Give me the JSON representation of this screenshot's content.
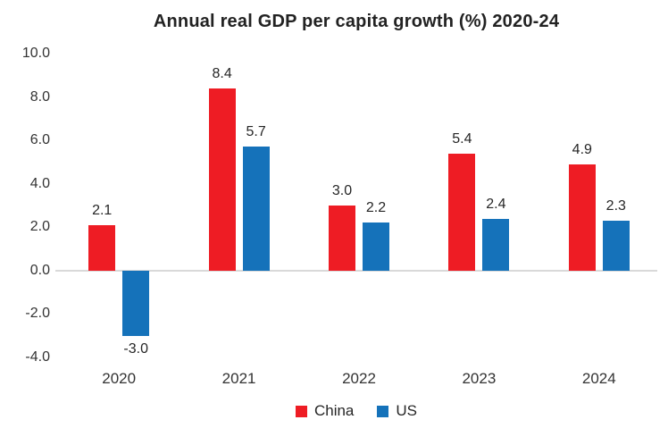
{
  "title": "Annual real GDP per capita growth (%) 2020-24",
  "chart_data": {
    "type": "bar",
    "categories": [
      "2020",
      "2021",
      "2022",
      "2023",
      "2024"
    ],
    "series": [
      {
        "name": "China",
        "color": "#EE1C24",
        "values": [
          2.1,
          8.4,
          3.0,
          5.4,
          4.9
        ]
      },
      {
        "name": "US",
        "color": "#1572BA",
        "values": [
          -3.0,
          5.7,
          2.2,
          2.4,
          2.3
        ]
      }
    ],
    "title": "Annual real GDP per capita growth (%) 2020-24",
    "xlabel": "",
    "ylabel": "",
    "ylim": [
      -4.0,
      10.0
    ],
    "yticks": [
      10.0,
      8.0,
      6.0,
      4.0,
      2.0,
      0.0,
      -2.0,
      -4.0
    ],
    "ytick_labels": [
      "10.0",
      "8.0",
      "6.0",
      "4.0",
      "2.0",
      "0.0",
      "-2.0",
      "-4.0"
    ],
    "grid": false,
    "zero_line": true,
    "value_labels": true,
    "legend_position": "bottom"
  },
  "colors": {
    "background": "#FFFFFF",
    "text": "#262626",
    "axis_text": "#333333",
    "zero_line": "#D9D9D9"
  }
}
